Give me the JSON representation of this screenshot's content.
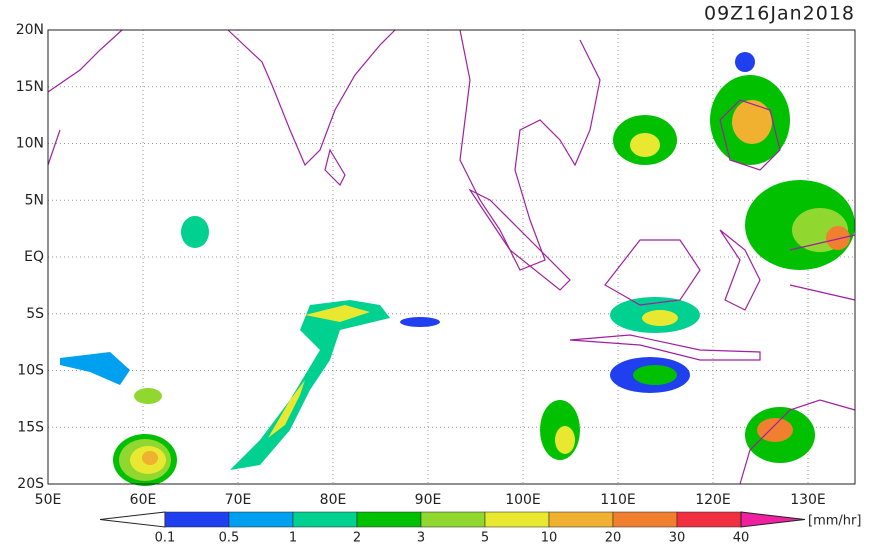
{
  "title": "09Z16Jan2018",
  "map": {
    "lat_labels": [
      "20N",
      "15N",
      "10N",
      "5N",
      "EQ",
      "5S",
      "10S",
      "15S",
      "20S"
    ],
    "lon_labels": [
      "50E",
      "60E",
      "70E",
      "80E",
      "90E",
      "100E",
      "110E",
      "120E",
      "130E"
    ]
  },
  "colorbar": {
    "levels": [
      0.1,
      0.5,
      1,
      2,
      3,
      5,
      10,
      20,
      30,
      40
    ],
    "unit": "[mm/hr]"
  }
}
